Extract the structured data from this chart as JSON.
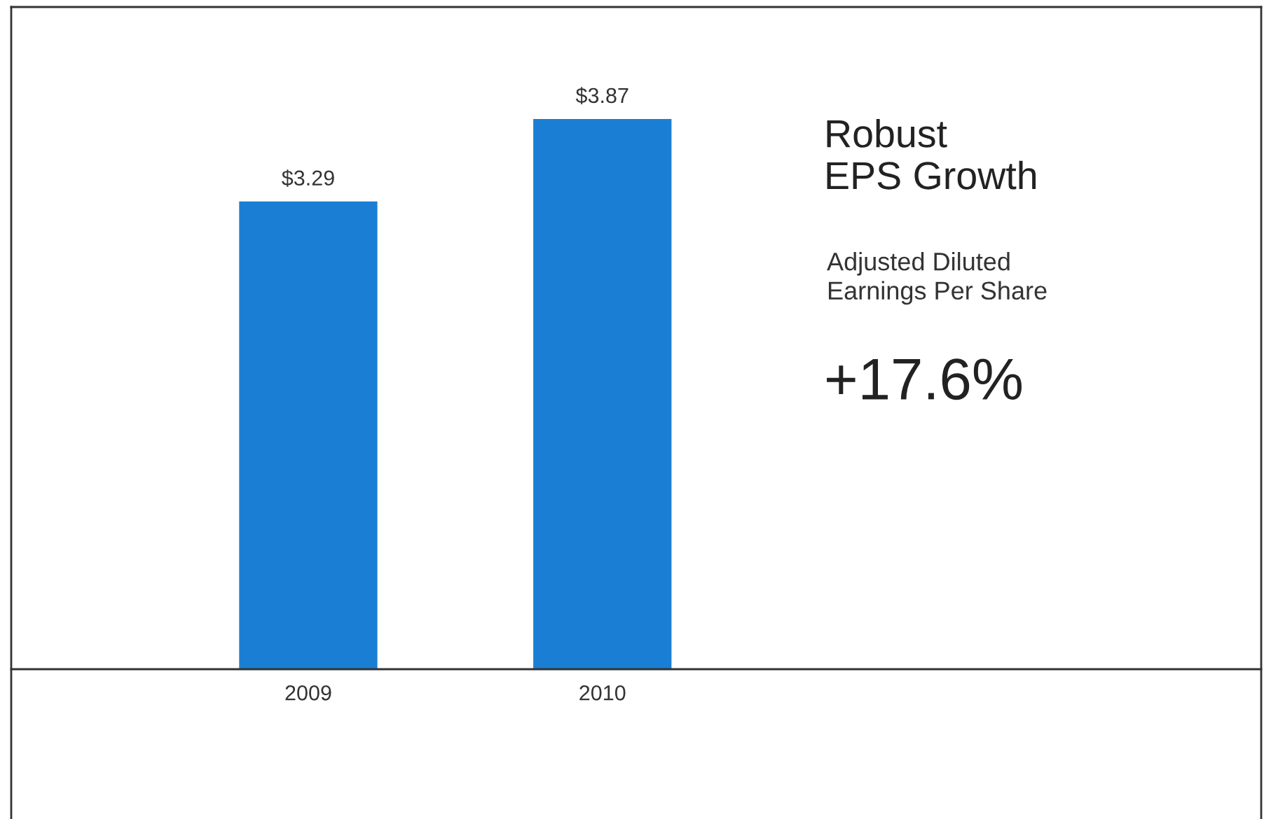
{
  "chart_data": {
    "type": "bar",
    "title": "Robust\nEPS Growth",
    "subtitle": "Adjusted Diluted\nEarnings Per Share",
    "annotations": [
      "+17.6%"
    ],
    "categories": [
      "2009",
      "2010"
    ],
    "values": [
      3.29,
      3.87
    ],
    "value_labels": [
      "$3.29",
      "$3.87"
    ],
    "color": "#1a7fd4",
    "grid": false,
    "legend": false
  }
}
